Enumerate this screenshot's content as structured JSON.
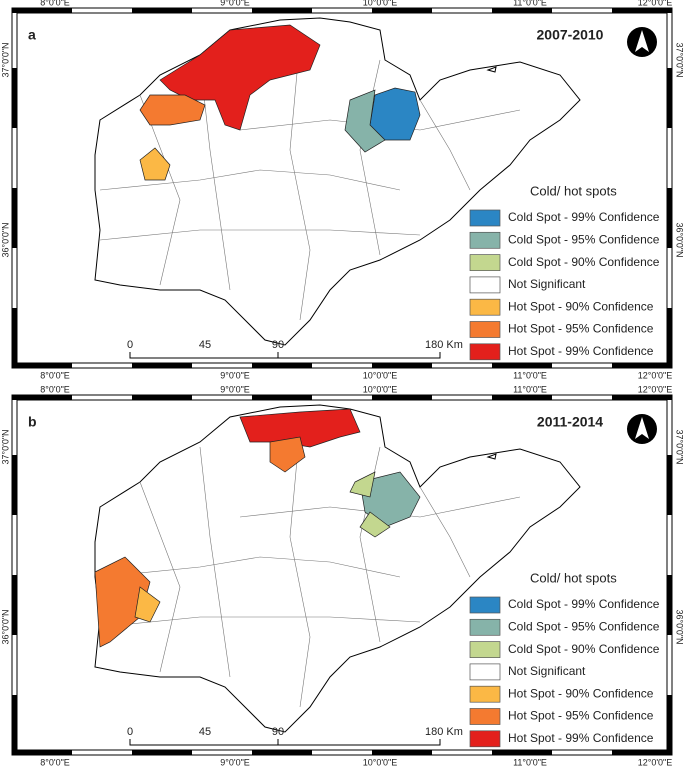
{
  "longitude_labels": [
    "8°0'0\"E",
    "9°0'0\"E",
    "10°0'0\"E",
    "11°0'0\"E",
    "12°0'0\"E"
  ],
  "latitude_labels": [
    "37°0'0\"N",
    "36°0'0\"N"
  ],
  "panels": [
    {
      "label": "a",
      "period": "2007-2010",
      "legend_title": "Cold/ hot spots",
      "legend": [
        {
          "label": "Cold Spot - 99% Confidence",
          "color": "#2b86c4"
        },
        {
          "label": "Cold Spot - 95% Confidence",
          "color": "#86b3a9"
        },
        {
          "label": "Cold Spot - 90% Confidence",
          "color": "#c3d78f"
        },
        {
          "label": "Not Significant",
          "color": "#ffffff"
        },
        {
          "label": "Hot Spot - 90% Confidence",
          "color": "#fbb845"
        },
        {
          "label": "Hot Spot - 95% Confidence",
          "color": "#f47a30"
        },
        {
          "label": "Hot Spot - 99% Confidence",
          "color": "#e3201c"
        }
      ],
      "scale_labels": [
        "0",
        "45",
        "90",
        "180 Km"
      ]
    },
    {
      "label": "b",
      "period": "2011-2014",
      "legend_title": "Cold/ hot spots",
      "legend": [
        {
          "label": "Cold Spot - 99% Confidence",
          "color": "#2b86c4"
        },
        {
          "label": "Cold Spot - 95% Confidence",
          "color": "#86b3a9"
        },
        {
          "label": "Cold Spot - 90% Confidence",
          "color": "#c3d78f"
        },
        {
          "label": "Not Significant",
          "color": "#ffffff"
        },
        {
          "label": "Hot Spot - 90% Confidence",
          "color": "#fbb845"
        },
        {
          "label": "Hot Spot - 95% Confidence",
          "color": "#f47a30"
        },
        {
          "label": "Hot Spot - 99% Confidence",
          "color": "#e3201c"
        }
      ],
      "scale_labels": [
        "0",
        "45",
        "90",
        "180 Km"
      ]
    }
  ]
}
